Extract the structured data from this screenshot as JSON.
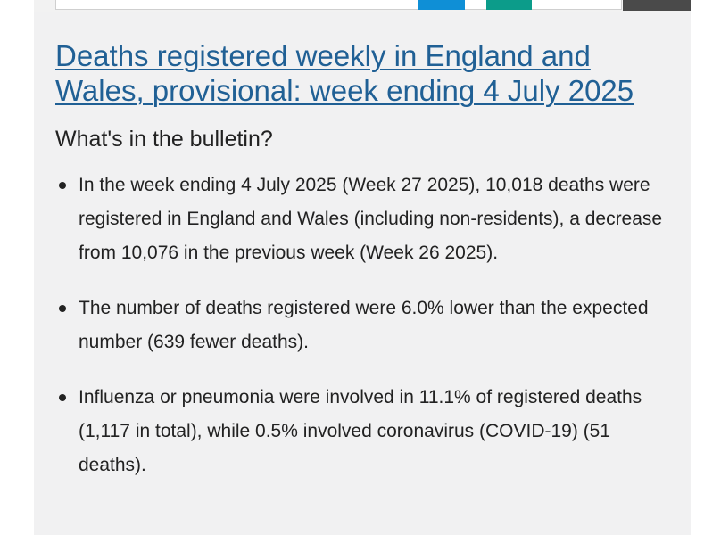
{
  "article": {
    "title": "Deaths registered weekly in England and Wales, provisional: week ending 4 July 2025",
    "subheading": "What's in the bulletin?",
    "bullets": [
      "In the week ending 4 July 2025 (Week 27 2025), 10,018 deaths were registered in England and Wales (including non-residents), a decrease from 10,076 in the previous week (Week 26 2025).",
      "The number of deaths registered were 6.0% lower than the expected number (639 fewer deaths).",
      "Influenza or pneumonia were involved in 11.1% of registered deaths (1,117 in total), while 0.5% involved coronavirus (COVID-19) (51 deaths)."
    ]
  },
  "colors": {
    "link": "#206095",
    "card_background": "#f1f1f2",
    "text": "#222222",
    "header_blue": "#0f8fd6",
    "header_teal": "#0c9c8a",
    "header_dark": "#4a4a4a"
  }
}
